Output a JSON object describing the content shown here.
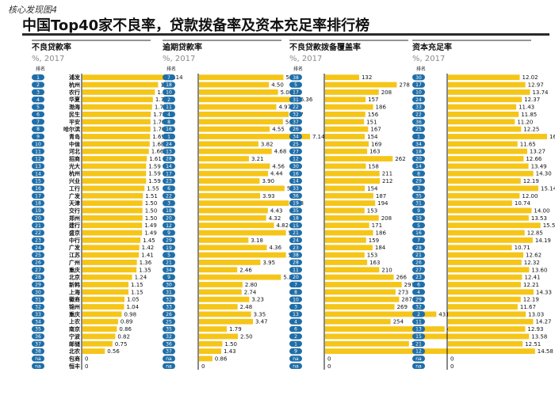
{
  "figure_label": "核心发现图4",
  "title": "中国Top40家不良率，贷款拨备率及资本充足率排行榜",
  "rank_header": "排名",
  "colors": {
    "bar": "#f5c518",
    "pill": "#1f6ea8",
    "rule": "#2a2a2a"
  },
  "chart_data": [
    {
      "type": "bar",
      "title": "不良贷款率",
      "subtitle": "%, 2017",
      "ranks": [
        "1",
        "2",
        "3",
        "4",
        "5",
        "6",
        "7",
        "8",
        "9",
        "10",
        "11",
        "12",
        "13",
        "14",
        "15",
        "16",
        "17",
        "18",
        "19",
        "20",
        "21",
        "22",
        "23",
        "24",
        "25",
        "26",
        "27",
        "28",
        "29",
        "30",
        "31",
        "32",
        "33",
        "34",
        "35",
        "36",
        "37",
        "38",
        "na",
        "na"
      ],
      "categories": [
        "浦发",
        "杭州",
        "农行",
        "华夏",
        "渤海",
        "民生",
        "平安",
        "哈尔滨",
        "青岛",
        "中信",
        "河北",
        "招商",
        "光大",
        "杭州",
        "兴业",
        "工行",
        "广发",
        "天津",
        "交行",
        "郑州",
        "建行",
        "盛京",
        "中行",
        "广发",
        "江苏",
        "广州",
        "重庆",
        "北京",
        "新韩",
        "上海",
        "徽商",
        "锦州",
        "重庆",
        "上农",
        "南京",
        "宁波",
        "邮储",
        "北农",
        "包商",
        "恒丰"
      ],
      "values": [
        2.14,
        1.89,
        1.81,
        1.76,
        1.74,
        1.71,
        1.7,
        1.7,
        1.69,
        1.68,
        1.66,
        1.61,
        1.59,
        1.59,
        1.59,
        1.55,
        1.51,
        1.5,
        1.5,
        1.5,
        1.49,
        1.49,
        1.45,
        1.42,
        1.41,
        1.36,
        1.35,
        1.24,
        1.15,
        1.15,
        1.05,
        1.04,
        0.98,
        0.89,
        0.86,
        0.82,
        0.75,
        0.56,
        0,
        0
      ],
      "labels": [
        "2.14",
        "1.89",
        "1.81",
        "1.76",
        "1.74",
        "1.71",
        "1.70",
        "1.70",
        "1.69",
        "1.68",
        "1.66",
        "1.61",
        "1.59",
        "1.59",
        "1.59",
        "1.55",
        "1.51",
        "1.50",
        "1.50",
        "1.50",
        "1.49",
        "1.49",
        "1.45",
        "1.42",
        "1.41",
        "1.36",
        "1.35",
        "1.24",
        "1.15",
        "1.15",
        "1.05",
        "1.04",
        "0.98",
        "0.89",
        "0.86",
        "0.82",
        "0.75",
        "0.56",
        "0",
        "0"
      ]
    },
    {
      "type": "bar",
      "title": "逾期贷款率",
      "subtitle": "%, 2017",
      "ranks": [
        "7",
        "18",
        "10",
        "2",
        "11",
        "4",
        "8",
        "16",
        "1",
        "24",
        "13",
        "28",
        "14",
        "17",
        "23",
        "6",
        "22",
        "3",
        "18",
        "20",
        "12",
        "9",
        "29",
        "19",
        "5",
        "21",
        "34",
        "9",
        "30",
        "31",
        "32",
        "33",
        "26",
        "25",
        "35",
        "32",
        "36",
        "37",
        "na",
        "na"
      ],
      "values": [
        5.43,
        4.5,
        5.08,
        6.36,
        4.97,
        5.77,
        5.4,
        4.55,
        7.14,
        3.82,
        4.68,
        3.21,
        4.56,
        4.44,
        3.9,
        5.5,
        3.93,
        5.78,
        4.43,
        4.32,
        4.82,
        5.59,
        3.18,
        4.36,
        5.59,
        3.95,
        2.46,
        5.27,
        2.8,
        2.74,
        3.23,
        2.48,
        3.35,
        3.47,
        1.79,
        2.5,
        1.5,
        1.43,
        0.86,
        0
      ],
      "labels": [
        "5.43",
        "4.50",
        "5.08",
        "6.36",
        "4.97",
        "5.77",
        "5.40",
        "4.55",
        "7.14",
        "3.82",
        "4.68",
        "3.21",
        "4.56",
        "4.44",
        "3.90",
        "5.50",
        "3.93",
        "5.78",
        "4.43",
        "4.32",
        "4.82",
        "5.59",
        "3.18",
        "4.36",
        "5.59",
        "3.95",
        "2.46",
        "5.27",
        "2.80",
        "2.74",
        "3.23",
        "2.48",
        "3.35",
        "3.47",
        "1.79",
        "2.50",
        "1.50",
        "1.43",
        "0.86",
        "0"
      ]
    },
    {
      "type": "bar",
      "title": "不良贷款拨备覆盖率",
      "subtitle": "%, 2017",
      "ranks": [
        "38",
        "5",
        "17",
        "31",
        "22",
        "32",
        "37",
        "26",
        "34",
        "25",
        "27",
        "12",
        "30",
        "16",
        "14",
        "33",
        "36",
        "19",
        "35",
        "18",
        "15",
        "21",
        "24",
        "23",
        "38",
        "28",
        "11",
        "20",
        "7",
        "8",
        "10",
        "3",
        "13",
        "4",
        "6",
        "2",
        "1",
        "9",
        "na",
        "na"
      ],
      "values": [
        132,
        278,
        208,
        157,
        186,
        156,
        151,
        167,
        154,
        169,
        163,
        262,
        158,
        211,
        212,
        154,
        187,
        194,
        153,
        208,
        171,
        186,
        159,
        184,
        153,
        163,
        210,
        266,
        297,
        273,
        287,
        269,
        431,
        254,
        463,
        493,
        325,
        599,
        0,
        0
      ],
      "labels": [
        "132",
        "278",
        "208",
        "157",
        "186",
        "156",
        "151",
        "167",
        "154",
        "169",
        "163",
        "262",
        "158",
        "211",
        "212",
        "154",
        "187",
        "194",
        "153",
        "208",
        "171",
        "186",
        "159",
        "184",
        "153",
        "163",
        "210",
        "266",
        "297",
        "273",
        "287",
        "269",
        "431",
        "254",
        "463",
        "493",
        "325",
        "599",
        "0",
        "0"
      ]
    },
    {
      "type": "bar",
      "title": "资本充足率",
      "subtitle": "%, 2017",
      "ranks": [
        "30",
        "17",
        "10",
        "24",
        "33",
        "22",
        "36",
        "25",
        "1",
        "34",
        "18",
        "20",
        "14",
        "8",
        "29",
        "3",
        "35",
        "31",
        "9",
        "19",
        "5",
        "16",
        "7",
        "28",
        "21",
        "26",
        "27",
        "23",
        "6",
        "4",
        "29",
        "32",
        "2",
        "11",
        "13",
        "15",
        "21",
        "12",
        "na",
        "na"
      ],
      "values": [
        12.02,
        12.97,
        13.74,
        12.37,
        11.43,
        11.85,
        11.2,
        12.25,
        16.6,
        11.65,
        13.27,
        12.66,
        13.49,
        14.3,
        12.19,
        15.14,
        12.0,
        10.74,
        14.0,
        13.53,
        15.5,
        12.85,
        14.19,
        10.71,
        12.62,
        12.32,
        13.6,
        12.41,
        12.21,
        14.33,
        12.19,
        11.67,
        13.03,
        14.27,
        12.93,
        13.58,
        12.51,
        14.58,
        0,
        0
      ],
      "labels": [
        "12.02",
        "12.97",
        "13.74",
        "12.37",
        "11.43",
        "11.85",
        "11.20",
        "12.25",
        "16.60",
        "11.65",
        "13.27",
        "12.66",
        "13.49",
        "14.30",
        "12.19",
        "15.14",
        "12.00",
        "10.74",
        "14.00",
        "13.53",
        "15.50",
        "12.85",
        "14.19",
        "10.71",
        "12.62",
        "12.32",
        "13.60",
        "12.41",
        "12.21",
        "14.33",
        "12.19",
        "11.67",
        "13.03",
        "14.27",
        "12.93",
        "13.58",
        "12.51",
        "14.58",
        "0",
        "0"
      ]
    }
  ]
}
